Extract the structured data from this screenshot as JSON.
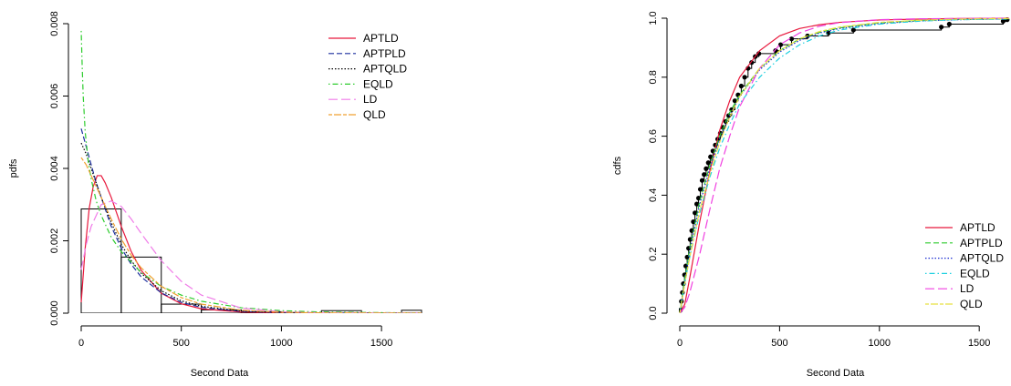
{
  "chart_data": [
    {
      "type": "histogram-line",
      "xlabel": "Second Data",
      "ylabel": "pdfs",
      "xlim": [
        0,
        1700
      ],
      "ylim": [
        0,
        0.008
      ],
      "x_ticks": [
        "0",
        "500",
        "1000",
        "1500"
      ],
      "y_ticks": [
        "0.000",
        "0.002",
        "0.004",
        "0.006",
        "0.008"
      ],
      "legend_position": "top-right",
      "histogram": {
        "breaks": [
          0,
          200,
          400,
          600,
          800,
          1000,
          1200,
          1400,
          1600,
          1700
        ],
        "density": [
          0.00288,
          0.00155,
          0.00025,
          9e-05,
          4e-05,
          1e-05,
          7e-05,
          0.0,
          8e-05
        ]
      },
      "series": [
        {
          "name": "APTLD",
          "color": "#e8183c",
          "dash": "solid",
          "x": [
            0,
            20,
            40,
            60,
            80,
            100,
            120,
            150,
            200,
            250,
            300,
            400,
            500,
            600,
            800,
            1000,
            1200,
            1400,
            1700
          ],
          "y": [
            0.0003,
            0.0018,
            0.0029,
            0.0035,
            0.0038,
            0.0038,
            0.0036,
            0.0032,
            0.0024,
            0.0017,
            0.00118,
            0.00055,
            0.00026,
            0.00012,
            3e-05,
            1e-05,
            3e-06,
            1e-06,
            0.0
          ]
        },
        {
          "name": "APTPLD",
          "color": "#1c2f9e",
          "dash": "dashed",
          "x": [
            0,
            25,
            50,
            75,
            100,
            150,
            200,
            250,
            300,
            400,
            500,
            600,
            800,
            1000,
            1200,
            1700
          ],
          "y": [
            0.0051,
            0.0046,
            0.0041,
            0.0036,
            0.0032,
            0.0024,
            0.0018,
            0.00135,
            0.001,
            0.00056,
            0.0003,
            0.00016,
            5e-05,
            1.5e-05,
            4e-06,
            0.0
          ]
        },
        {
          "name": "APTQLD",
          "color": "#000000",
          "dash": "dotted",
          "x": [
            0,
            25,
            50,
            75,
            100,
            150,
            200,
            250,
            300,
            400,
            500,
            600,
            800,
            1000,
            1200,
            1700
          ],
          "y": [
            0.0047,
            0.0044,
            0.004,
            0.0036,
            0.0032,
            0.0025,
            0.0019,
            0.00145,
            0.0011,
            0.00062,
            0.00034,
            0.00019,
            6e-05,
            2e-05,
            6e-06,
            0.0
          ]
        },
        {
          "name": "EQLD",
          "color": "#2ecc2e",
          "dash": "dotdash",
          "x": [
            0,
            5,
            10,
            20,
            35,
            50,
            75,
            100,
            150,
            200,
            300,
            400,
            500,
            600,
            800,
            1000,
            1200,
            1700
          ],
          "y": [
            0.0078,
            0.0068,
            0.006,
            0.005,
            0.0042,
            0.0037,
            0.0031,
            0.0027,
            0.0021,
            0.0017,
            0.00112,
            0.00074,
            0.0005,
            0.00033,
            0.00015,
            7e-05,
            3e-05,
            5e-06
          ]
        },
        {
          "name": "LD",
          "color": "#f07ce8",
          "dash": "longdash",
          "x": [
            0,
            25,
            50,
            100,
            150,
            200,
            250,
            300,
            400,
            500,
            600,
            800,
            1000,
            1200,
            1700
          ],
          "y": [
            0.0012,
            0.0019,
            0.0024,
            0.003,
            0.0031,
            0.00295,
            0.0026,
            0.0022,
            0.00145,
            0.00088,
            0.0005,
            0.00014,
            4e-05,
            1e-05,
            0.0
          ]
        },
        {
          "name": "QLD",
          "color": "#f0a030",
          "dash": "twodash",
          "x": [
            0,
            25,
            50,
            75,
            100,
            150,
            200,
            250,
            300,
            400,
            500,
            600,
            800,
            1000,
            1200,
            1700
          ],
          "y": [
            0.0043,
            0.0041,
            0.0038,
            0.0035,
            0.0032,
            0.0026,
            0.00205,
            0.0016,
            0.00125,
            0.00074,
            0.00043,
            0.00025,
            8e-05,
            2.5e-05,
            8e-06,
            0.0
          ]
        }
      ]
    },
    {
      "type": "ecdf-line",
      "xlabel": "Second Data",
      "ylabel": "cdfs",
      "xlim": [
        0,
        1650
      ],
      "ylim": [
        0,
        1
      ],
      "x_ticks": [
        "0",
        "500",
        "1000",
        "1500"
      ],
      "y_ticks": [
        "0.0",
        "0.2",
        "0.4",
        "0.6",
        "0.8",
        "1.0"
      ],
      "legend_position": "bottom-right",
      "ecdf_points": {
        "x": [
          3,
          8,
          13,
          18,
          24,
          30,
          37,
          44,
          52,
          60,
          68,
          76,
          85,
          94,
          103,
          112,
          122,
          132,
          143,
          154,
          166,
          178,
          190,
          203,
          216,
          230,
          245,
          260,
          276,
          292,
          308,
          325,
          342,
          360,
          378,
          396,
          480,
          505,
          560,
          640,
          745,
          870,
          1310,
          1350,
          1620,
          1640
        ],
        "y": [
          0.01,
          0.04,
          0.07,
          0.1,
          0.13,
          0.16,
          0.19,
          0.22,
          0.25,
          0.28,
          0.31,
          0.34,
          0.37,
          0.39,
          0.42,
          0.45,
          0.47,
          0.49,
          0.51,
          0.53,
          0.55,
          0.57,
          0.59,
          0.61,
          0.63,
          0.65,
          0.67,
          0.69,
          0.72,
          0.74,
          0.77,
          0.8,
          0.83,
          0.85,
          0.87,
          0.88,
          0.89,
          0.91,
          0.93,
          0.94,
          0.95,
          0.96,
          0.97,
          0.98,
          0.99,
          0.995
        ]
      },
      "series": [
        {
          "name": "APTLD",
          "color": "#e8183c",
          "dash": "solid",
          "x": [
            0,
            25,
            50,
            100,
            150,
            200,
            250,
            300,
            400,
            500,
            600,
            700,
            800,
            1000,
            1200,
            1400,
            1650
          ],
          "y": [
            0,
            0.03,
            0.12,
            0.31,
            0.48,
            0.62,
            0.72,
            0.8,
            0.89,
            0.94,
            0.965,
            0.978,
            0.986,
            0.994,
            0.997,
            0.999,
            1.0
          ]
        },
        {
          "name": "APTPLD",
          "color": "#2ecc2e",
          "dash": "dashed",
          "x": [
            0,
            25,
            50,
            100,
            150,
            200,
            250,
            300,
            400,
            500,
            600,
            700,
            800,
            1000,
            1200,
            1400,
            1650
          ],
          "y": [
            0,
            0.12,
            0.22,
            0.38,
            0.5,
            0.6,
            0.68,
            0.74,
            0.83,
            0.89,
            0.93,
            0.952,
            0.967,
            0.984,
            0.992,
            0.996,
            0.998
          ]
        },
        {
          "name": "APTQLD",
          "color": "#1c2fd0",
          "dash": "dotted",
          "x": [
            0,
            25,
            50,
            100,
            150,
            200,
            250,
            300,
            400,
            500,
            600,
            700,
            800,
            1000,
            1200,
            1400,
            1650
          ],
          "y": [
            0,
            0.11,
            0.21,
            0.37,
            0.49,
            0.59,
            0.67,
            0.735,
            0.825,
            0.885,
            0.925,
            0.95,
            0.965,
            0.982,
            0.991,
            0.995,
            0.998
          ]
        },
        {
          "name": "EQLD",
          "color": "#20d0e0",
          "dash": "dotdash",
          "x": [
            0,
            25,
            50,
            100,
            150,
            200,
            250,
            300,
            400,
            500,
            600,
            700,
            800,
            1000,
            1200,
            1400,
            1650
          ],
          "y": [
            0,
            0.1,
            0.19,
            0.34,
            0.46,
            0.56,
            0.64,
            0.71,
            0.8,
            0.865,
            0.91,
            0.94,
            0.96,
            0.98,
            0.99,
            0.995,
            0.997
          ]
        },
        {
          "name": "LD",
          "color": "#f040e0",
          "dash": "longdash",
          "x": [
            0,
            25,
            50,
            100,
            150,
            200,
            250,
            300,
            400,
            500,
            600,
            700,
            800,
            1000,
            1200,
            1400,
            1650
          ],
          "y": [
            0,
            0.02,
            0.07,
            0.2,
            0.35,
            0.49,
            0.6,
            0.7,
            0.83,
            0.91,
            0.95,
            0.973,
            0.985,
            0.995,
            0.998,
            0.999,
            1.0
          ]
        },
        {
          "name": "QLD",
          "color": "#e8e040",
          "dash": "twodash",
          "x": [
            0,
            25,
            50,
            100,
            150,
            200,
            250,
            300,
            400,
            500,
            600,
            700,
            800,
            1000,
            1200,
            1400,
            1650
          ],
          "y": [
            0,
            0.1,
            0.19,
            0.35,
            0.47,
            0.58,
            0.665,
            0.735,
            0.83,
            0.89,
            0.93,
            0.955,
            0.97,
            0.986,
            0.993,
            0.997,
            0.999
          ]
        }
      ]
    }
  ]
}
